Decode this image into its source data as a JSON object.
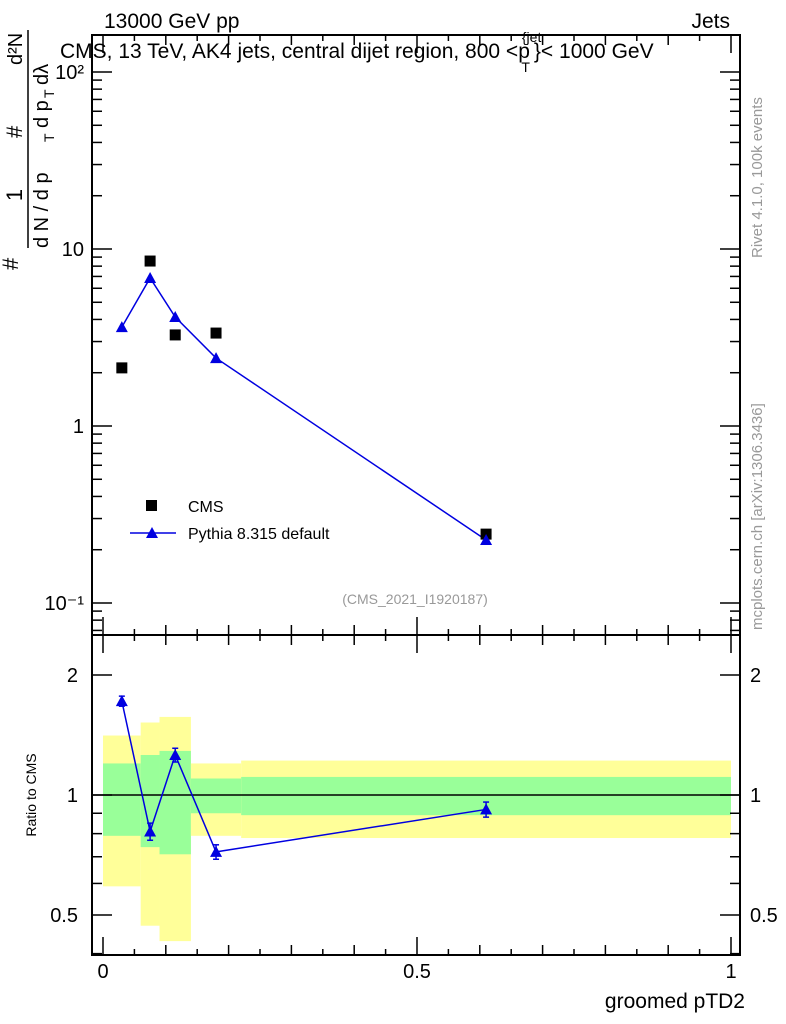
{
  "header": {
    "left": "13000 GeV pp",
    "right": "Jets"
  },
  "side_text": {
    "rivet": "Rivet 4.1.0,  100k events",
    "mcplots": "mcplots.cern.ch [arXiv:1306.3436]"
  },
  "chart_data": [
    {
      "type": "scatter",
      "title": "CMS, 13 TeV, AK4 jets, central dijet region, 800 <p_T^{jet}< 1000 GeV",
      "title_parts": {
        "main": "CMS, 13 TeV, AK4 jets, central dijet region, 800 <p",
        "sup": "{jet",
        "sub": "T",
        "end": "}< 1000 GeV"
      },
      "ylabel_parts": {
        "num1": "1",
        "den1": "d N / d p",
        "num2": "d²N",
        "den2": "d p",
        "sub": "T",
        "dl": "dλ",
        "hash": "#"
      },
      "xlim": [
        0,
        1
      ],
      "ylim": [
        0.075,
        170
      ],
      "yscale": "log",
      "yticks": [
        {
          "v": 0.1,
          "label": "10⁻¹"
        },
        {
          "v": 1,
          "label": "1"
        },
        {
          "v": 10,
          "label": "10"
        },
        {
          "v": 100,
          "label": "10²"
        }
      ],
      "analysis_id": "(CMS_2021_I1920187)",
      "legend_position": "bottom-left",
      "series": [
        {
          "name": "CMS",
          "marker": "square",
          "color": "#000000",
          "x": [
            0.03,
            0.075,
            0.115,
            0.18,
            0.61
          ],
          "y": [
            2.13,
            8.55,
            3.27,
            3.35,
            0.245
          ]
        },
        {
          "name": "Pythia 8.315 default",
          "marker": "triangle",
          "color": "#0000e0",
          "x": [
            0.03,
            0.075,
            0.115,
            0.18,
            0.61
          ],
          "y": [
            3.62,
            6.86,
            4.13,
            2.42,
            0.227
          ]
        }
      ]
    },
    {
      "type": "line",
      "ylabel": "Ratio to CMS",
      "xlabel": "groomed pTD2",
      "xlim": [
        0,
        1
      ],
      "ylim": [
        0.397,
        2.52
      ],
      "yscale": "log",
      "xticks": [
        {
          "v": 0,
          "label": "0"
        },
        {
          "v": 0.5,
          "label": "0.5"
        },
        {
          "v": 1,
          "label": "1"
        }
      ],
      "yticks": [
        {
          "v": 0.5,
          "label": "0.5"
        },
        {
          "v": 1,
          "label": "1"
        },
        {
          "v": 2,
          "label": "2"
        }
      ],
      "bands": {
        "bin_edges": [
          0,
          0.06,
          0.09,
          0.14,
          0.22,
          1.0
        ],
        "green_up": [
          1.2,
          1.26,
          1.29,
          1.1,
          1.11
        ],
        "green_down": [
          0.79,
          0.74,
          0.71,
          0.9,
          0.89
        ],
        "yellow_up": [
          1.41,
          1.52,
          1.57,
          1.2,
          1.22
        ],
        "yellow_down": [
          0.59,
          0.47,
          0.43,
          0.79,
          0.78
        ],
        "green_color": "#99ff99",
        "yellow_color": "#ffff99"
      },
      "series": [
        {
          "name": "Pythia 8.315 default",
          "color": "#0000e0",
          "x": [
            0.03,
            0.075,
            0.115,
            0.18,
            0.61
          ],
          "y": [
            1.72,
            0.81,
            1.26,
            0.72,
            0.92
          ],
          "err": [
            0.05,
            0.04,
            0.05,
            0.03,
            0.04
          ]
        }
      ]
    }
  ]
}
